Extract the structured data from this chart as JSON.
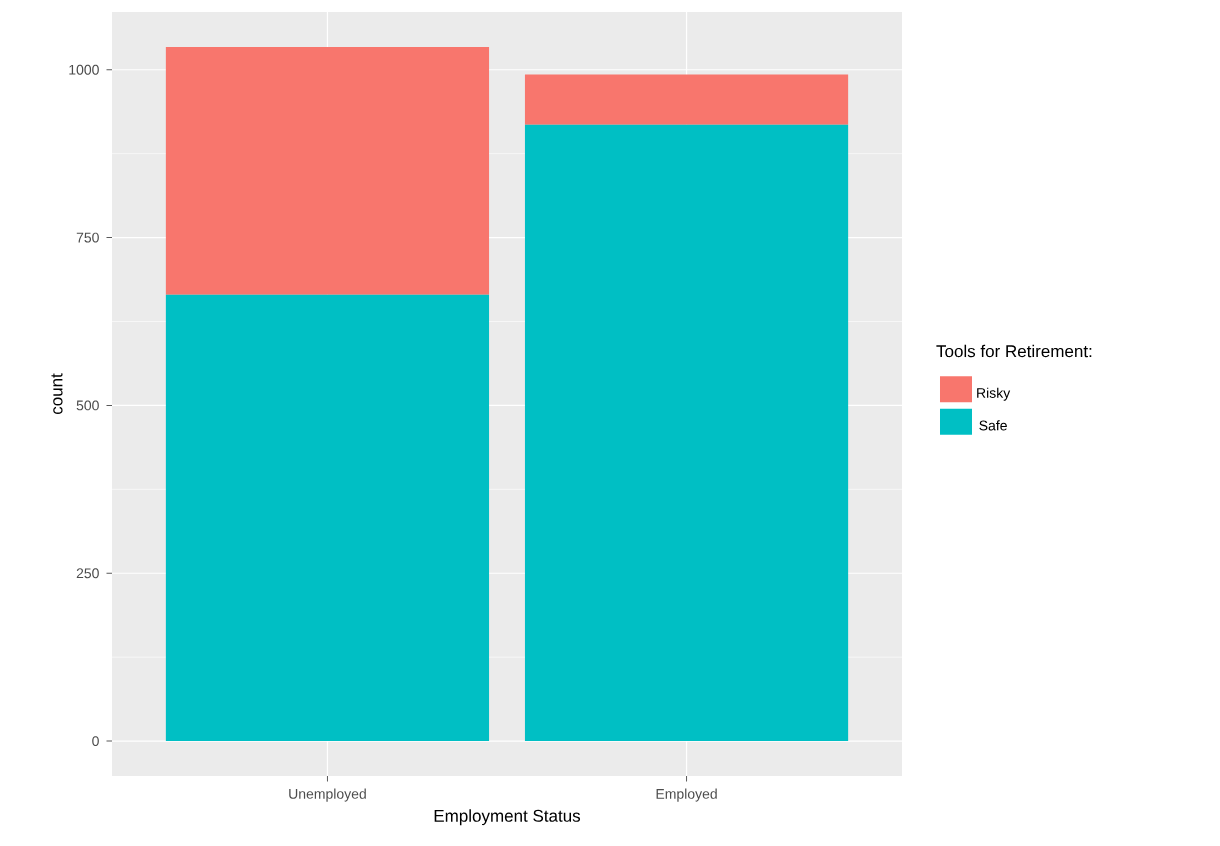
{
  "chart_data": {
    "type": "bar",
    "stacked": true,
    "xlabel": "Employment Status",
    "ylabel": "count",
    "legend_title": "Tools for Retirement:",
    "categories": [
      "Unemployed",
      "Employed"
    ],
    "series": [
      {
        "name": "Safe",
        "color": "#00bfc4",
        "values": [
          665,
          918
        ]
      },
      {
        "name": "Risky",
        "color": "#f8766d",
        "values": [
          369,
          75
        ]
      }
    ],
    "ylim": [
      -52,
      1086
    ],
    "yticks": [
      0,
      250,
      500,
      750,
      1000
    ],
    "grid": true,
    "legend": "right"
  }
}
